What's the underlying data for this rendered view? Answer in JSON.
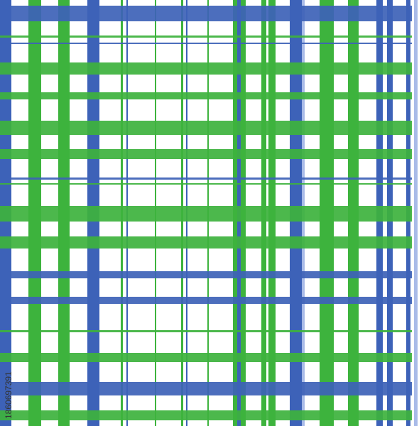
{
  "watermark": {
    "id": "1860697391"
  }
}
